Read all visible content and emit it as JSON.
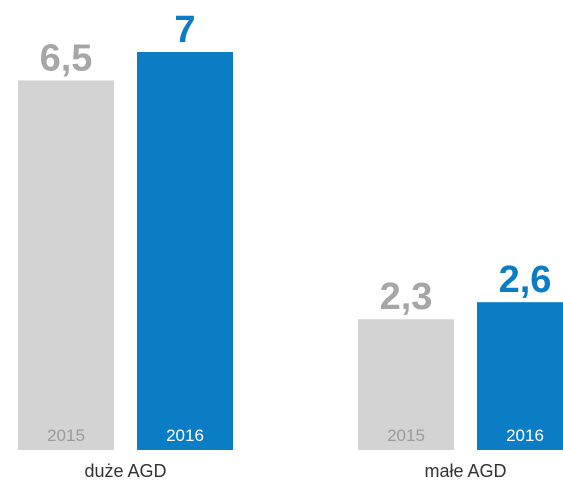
{
  "chart_data": {
    "type": "bar",
    "categories": [
      "duże AGD",
      "małe AGD"
    ],
    "series": [
      {
        "name": "2015",
        "color": "#d3d3d3",
        "label_color": "#a6a6a6",
        "name_color": "#9a9a9a",
        "values": [
          6.5,
          2.3
        ],
        "value_labels": [
          "6,5",
          "2,3"
        ]
      },
      {
        "name": "2016",
        "color": "#0a7dc4",
        "label_color": "#0a7dc4",
        "name_color": "#ffffff",
        "values": [
          7,
          2.6
        ],
        "value_labels": [
          "7",
          "2,6"
        ]
      }
    ]
  }
}
